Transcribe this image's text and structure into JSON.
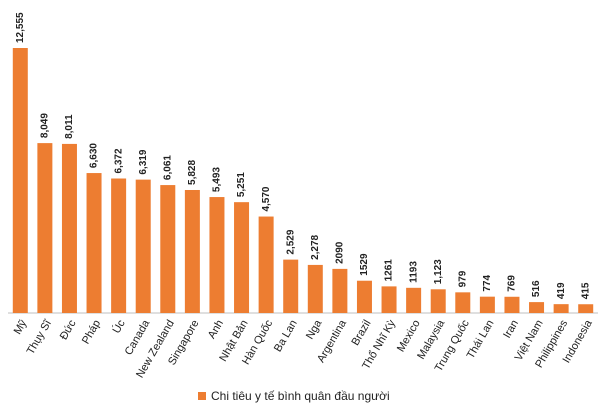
{
  "chart_data": {
    "type": "bar",
    "categories": [
      "Mỹ",
      "Thụy Sĩ",
      "Đức",
      "Pháp",
      "Úc",
      "Canada",
      "New Zealand",
      "Singapore",
      "Anh",
      "Nhật Bản",
      "Hàn Quốc",
      "Ba Lan",
      "Nga",
      "Argentina",
      "Brazil",
      "Thổ Nhĩ Kỳ",
      "Mexico",
      "Malaysia",
      "Trung Quốc",
      "Thái Lan",
      "Iran",
      "Việt Nam",
      "Philippines",
      "Indonesia"
    ],
    "series": [
      {
        "name": "Chi tiêu y tế bình quân đầu người",
        "color": "#ed7d31",
        "values": [
          12555,
          8049,
          8011,
          6630,
          6372,
          6319,
          6061,
          5828,
          5493,
          5251,
          4570,
          2529,
          2278,
          2090,
          1529,
          1261,
          1193,
          1123,
          979,
          774,
          769,
          516,
          419,
          415
        ],
        "value_labels": [
          "12,555",
          "8,049",
          "8,011",
          "6,630",
          "6,372",
          "6,319",
          "6,061",
          "5,828",
          "5,493",
          "5,251",
          "4,570",
          "2,529",
          "2,278",
          "2090",
          "1529",
          "1261",
          "1193",
          "1,123",
          "979",
          "774",
          "769",
          "516",
          "419",
          "415"
        ]
      }
    ],
    "legend": "bottom"
  }
}
